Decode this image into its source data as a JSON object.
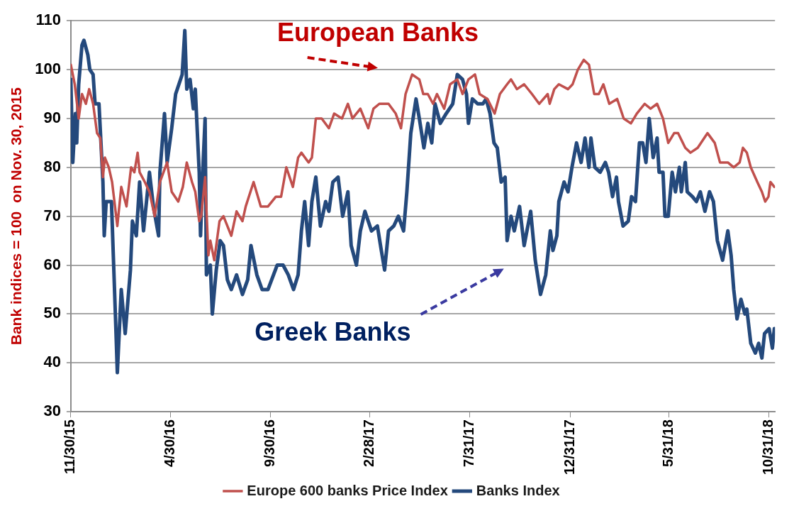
{
  "chart_data": {
    "type": "line",
    "ylabel": "Bank indices = 100  on Nov. 30, 2015",
    "xlim": [
      "2015-11-30",
      "2018-11-09"
    ],
    "xticks": [
      {
        "value": "2015-11-30",
        "label": "11/30/15"
      },
      {
        "value": "2016-04-30",
        "label": "4/30/16"
      },
      {
        "value": "2016-09-30",
        "label": "9/30/16"
      },
      {
        "value": "2017-02-28",
        "label": "2/28/17"
      },
      {
        "value": "2017-07-31",
        "label": "7/31/17"
      },
      {
        "value": "2017-12-31",
        "label": "12/31/17"
      },
      {
        "value": "2018-05-31",
        "label": "5/31/18"
      },
      {
        "value": "2018-10-31",
        "label": "10/31/18"
      }
    ],
    "ylim": [
      30,
      110
    ],
    "yticks": [
      30,
      40,
      50,
      60,
      70,
      80,
      90,
      100,
      110
    ],
    "grid": "y",
    "legend": "bottom",
    "marker": "none",
    "line_style": "solid",
    "annotations": [
      "European Banks",
      "Greek Banks"
    ],
    "series": [
      {
        "name": "Banks Index",
        "color": "#24497c",
        "x": [
          "2015-11-30",
          "2015-12-03",
          "2015-12-07",
          "2015-12-09",
          "2015-12-12",
          "2015-12-17",
          "2015-12-20",
          "2015-12-26",
          "2015-12-29",
          "2016-01-03",
          "2016-01-06",
          "2016-01-12",
          "2016-01-18",
          "2016-01-20",
          "2016-01-23",
          "2016-01-31",
          "2016-02-06",
          "2016-02-09",
          "2016-02-15",
          "2016-02-21",
          "2016-02-29",
          "2016-03-03",
          "2016-03-09",
          "2016-03-14",
          "2016-03-20",
          "2016-03-29",
          "2016-04-04",
          "2016-04-12",
          "2016-04-14",
          "2016-04-21",
          "2016-04-25",
          "2016-05-02",
          "2016-05-08",
          "2016-05-13",
          "2016-05-18",
          "2016-05-22",
          "2016-05-25",
          "2016-05-30",
          "2016-06-04",
          "2016-06-07",
          "2016-06-13",
          "2016-06-15",
          "2016-06-19",
          "2016-06-22",
          "2016-06-24",
          "2016-06-30",
          "2016-07-03",
          "2016-07-09",
          "2016-07-15",
          "2016-07-20",
          "2016-07-26",
          "2016-08-01",
          "2016-08-09",
          "2016-08-18",
          "2016-08-26",
          "2016-08-31",
          "2016-09-09",
          "2016-09-17",
          "2016-09-26",
          "2016-10-10",
          "2016-10-19",
          "2016-10-27",
          "2016-11-04",
          "2016-11-11",
          "2016-11-16",
          "2016-11-21",
          "2016-11-27",
          "2016-12-02",
          "2016-12-08",
          "2016-12-15",
          "2016-12-23",
          "2016-12-28",
          "2017-01-03",
          "2017-01-11",
          "2017-01-18",
          "2017-01-26",
          "2017-01-31",
          "2017-02-08",
          "2017-02-14",
          "2017-02-21",
          "2017-03-03",
          "2017-03-12",
          "2017-03-18",
          "2017-03-23",
          "2017-03-29",
          "2017-04-06",
          "2017-04-13",
          "2017-04-21",
          "2017-04-26",
          "2017-05-02",
          "2017-05-10",
          "2017-05-15",
          "2017-05-22",
          "2017-05-28",
          "2017-06-03",
          "2017-06-08",
          "2017-06-16",
          "2017-06-25",
          "2017-07-05",
          "2017-07-12",
          "2017-07-20",
          "2017-07-26",
          "2017-07-29",
          "2017-08-04",
          "2017-08-12",
          "2017-08-20",
          "2017-08-25",
          "2017-08-31",
          "2017-09-06",
          "2017-09-11",
          "2017-09-17",
          "2017-09-23",
          "2017-09-26",
          "2017-10-02",
          "2017-10-07",
          "2017-10-15",
          "2017-10-22",
          "2017-11-01",
          "2017-11-08",
          "2017-11-16",
          "2017-11-24",
          "2017-12-01",
          "2017-12-05",
          "2017-12-11",
          "2017-12-14",
          "2017-12-22",
          "2017-12-28",
          "2018-01-03",
          "2018-01-10",
          "2018-01-17",
          "2018-01-23",
          "2018-01-29",
          "2018-02-01",
          "2018-02-07",
          "2018-02-15",
          "2018-02-23",
          "2018-02-28",
          "2018-03-06",
          "2018-03-12",
          "2018-03-15",
          "2018-03-22",
          "2018-03-30",
          "2018-04-04",
          "2018-04-10",
          "2018-04-16",
          "2018-04-21",
          "2018-04-26",
          "2018-05-01",
          "2018-05-07",
          "2018-05-13",
          "2018-05-16",
          "2018-05-22",
          "2018-05-25",
          "2018-05-30",
          "2018-06-05",
          "2018-06-10",
          "2018-06-16",
          "2018-06-19",
          "2018-06-25",
          "2018-06-28",
          "2018-07-06",
          "2018-07-12",
          "2018-07-18",
          "2018-07-25",
          "2018-08-01",
          "2018-08-07",
          "2018-08-13",
          "2018-08-21",
          "2018-08-29",
          "2018-09-03",
          "2018-09-07",
          "2018-09-12",
          "2018-09-18",
          "2018-09-24",
          "2018-09-27",
          "2018-10-03",
          "2018-10-10",
          "2018-10-15",
          "2018-10-20",
          "2018-10-24",
          "2018-10-31",
          "2018-11-05",
          "2018-11-08"
        ],
        "values": [
          98,
          81,
          91,
          85,
          97,
          105,
          106,
          103,
          100,
          99,
          93,
          93,
          77,
          66,
          73,
          73,
          50,
          38,
          55,
          46,
          59,
          69,
          66,
          77,
          67,
          79,
          72,
          66,
          79,
          91,
          81,
          88,
          95,
          97,
          99,
          108,
          96,
          98,
          92,
          96,
          79,
          66,
          81,
          90,
          58,
          60,
          50,
          59,
          65,
          64,
          57,
          55,
          58,
          54,
          57,
          64,
          58,
          55,
          55,
          60,
          60,
          58,
          55,
          58,
          67,
          73,
          64,
          73,
          78,
          68,
          73,
          71,
          77,
          78,
          70,
          75,
          64,
          60,
          67,
          71,
          67,
          68,
          63,
          59,
          67,
          68,
          70,
          67,
          75,
          87,
          94,
          90,
          84,
          89,
          85,
          93,
          89,
          91,
          93,
          99,
          98,
          95,
          89,
          94,
          93,
          93,
          94,
          91,
          85,
          84,
          77,
          78,
          65,
          70,
          67,
          72,
          64,
          71,
          61,
          54,
          58,
          67,
          63,
          66,
          73,
          77,
          75,
          80,
          85,
          81,
          86,
          80,
          86,
          80,
          79,
          81,
          79,
          74,
          78,
          73,
          68,
          69,
          74,
          73,
          85,
          85,
          81,
          90,
          82,
          86,
          79,
          79,
          70,
          70,
          79,
          75,
          80,
          75,
          81,
          75,
          74,
          73,
          75,
          71,
          75,
          73,
          65,
          61,
          67,
          62,
          55,
          49,
          53,
          50,
          51,
          44,
          42,
          44,
          41,
          46,
          47,
          43,
          47
        ]
      },
      {
        "name": "Europe 600 banks Price Index",
        "color": "#c0504d",
        "x": [
          "2015-11-30",
          "2015-12-06",
          "2015-12-12",
          "2015-12-17",
          "2015-12-23",
          "2015-12-28",
          "2016-01-03",
          "2016-01-09",
          "2016-01-14",
          "2016-01-18",
          "2016-01-21",
          "2016-01-27",
          "2016-02-01",
          "2016-02-09",
          "2016-02-15",
          "2016-02-23",
          "2016-03-01",
          "2016-03-06",
          "2016-03-11",
          "2016-03-14",
          "2016-03-22",
          "2016-03-29",
          "2016-04-06",
          "2016-04-14",
          "2016-04-25",
          "2016-05-02",
          "2016-05-12",
          "2016-05-19",
          "2016-05-25",
          "2016-06-02",
          "2016-06-07",
          "2016-06-13",
          "2016-06-16",
          "2016-06-22",
          "2016-06-27",
          "2016-06-30",
          "2016-07-06",
          "2016-07-14",
          "2016-07-20",
          "2016-08-01",
          "2016-08-09",
          "2016-08-18",
          "2016-08-23",
          "2016-09-04",
          "2016-09-15",
          "2016-09-26",
          "2016-10-08",
          "2016-10-16",
          "2016-10-24",
          "2016-11-03",
          "2016-11-11",
          "2016-11-16",
          "2016-11-27",
          "2016-12-02",
          "2016-12-08",
          "2016-12-17",
          "2016-12-28",
          "2017-01-05",
          "2017-01-17",
          "2017-01-26",
          "2017-02-02",
          "2017-02-14",
          "2017-02-26",
          "2017-03-06",
          "2017-03-15",
          "2017-03-29",
          "2017-04-09",
          "2017-04-17",
          "2017-04-24",
          "2017-05-04",
          "2017-05-15",
          "2017-05-21",
          "2017-05-28",
          "2017-06-05",
          "2017-06-11",
          "2017-06-22",
          "2017-07-01",
          "2017-07-12",
          "2017-07-20",
          "2017-07-29",
          "2017-08-08",
          "2017-08-15",
          "2017-08-27",
          "2017-09-07",
          "2017-09-15",
          "2017-09-26",
          "2017-10-02",
          "2017-10-11",
          "2017-10-22",
          "2017-11-03",
          "2017-11-14",
          "2017-11-27",
          "2017-11-30",
          "2017-12-07",
          "2017-12-14",
          "2017-12-28",
          "2018-01-04",
          "2018-01-12",
          "2018-01-21",
          "2018-01-29",
          "2018-02-06",
          "2018-02-13",
          "2018-02-20",
          "2018-03-01",
          "2018-03-13",
          "2018-03-23",
          "2018-04-03",
          "2018-04-12",
          "2018-04-24",
          "2018-05-03",
          "2018-05-13",
          "2018-05-22",
          "2018-05-30",
          "2018-06-08",
          "2018-06-14",
          "2018-06-25",
          "2018-07-03",
          "2018-07-14",
          "2018-07-29",
          "2018-08-09",
          "2018-08-17",
          "2018-08-29",
          "2018-09-07",
          "2018-09-16",
          "2018-09-21",
          "2018-09-27",
          "2018-10-03",
          "2018-10-13",
          "2018-10-20",
          "2018-10-25",
          "2018-10-30",
          "2018-11-02",
          "2018-11-08"
        ],
        "values": [
          101,
          97,
          90,
          95,
          93,
          96,
          93,
          87,
          86,
          78,
          82,
          80,
          77,
          68,
          76,
          72,
          80,
          79,
          83,
          79,
          77,
          75,
          70,
          77,
          81,
          75,
          73,
          76,
          81,
          77,
          75,
          69,
          70,
          78,
          62,
          65,
          61,
          69,
          70,
          66,
          71,
          69,
          72,
          77,
          72,
          72,
          74,
          74,
          80,
          76,
          82,
          83,
          81,
          82,
          90,
          90,
          88,
          91,
          90,
          93,
          90,
          92,
          88,
          92,
          93,
          93,
          91,
          88,
          95,
          99,
          98,
          95,
          95,
          93,
          95,
          92,
          97,
          98,
          95,
          98,
          99,
          95,
          94,
          91,
          95,
          97,
          98,
          96,
          97,
          95,
          93,
          95,
          93,
          96,
          97,
          96,
          97,
          100,
          102,
          101,
          95,
          95,
          97,
          93,
          94,
          90,
          89,
          91,
          93,
          92,
          93,
          90,
          85,
          87,
          87,
          84,
          83,
          84,
          87,
          85,
          81,
          81,
          80,
          81,
          84,
          83,
          80,
          77,
          75,
          73,
          74,
          77,
          76
        ]
      }
    ]
  }
}
